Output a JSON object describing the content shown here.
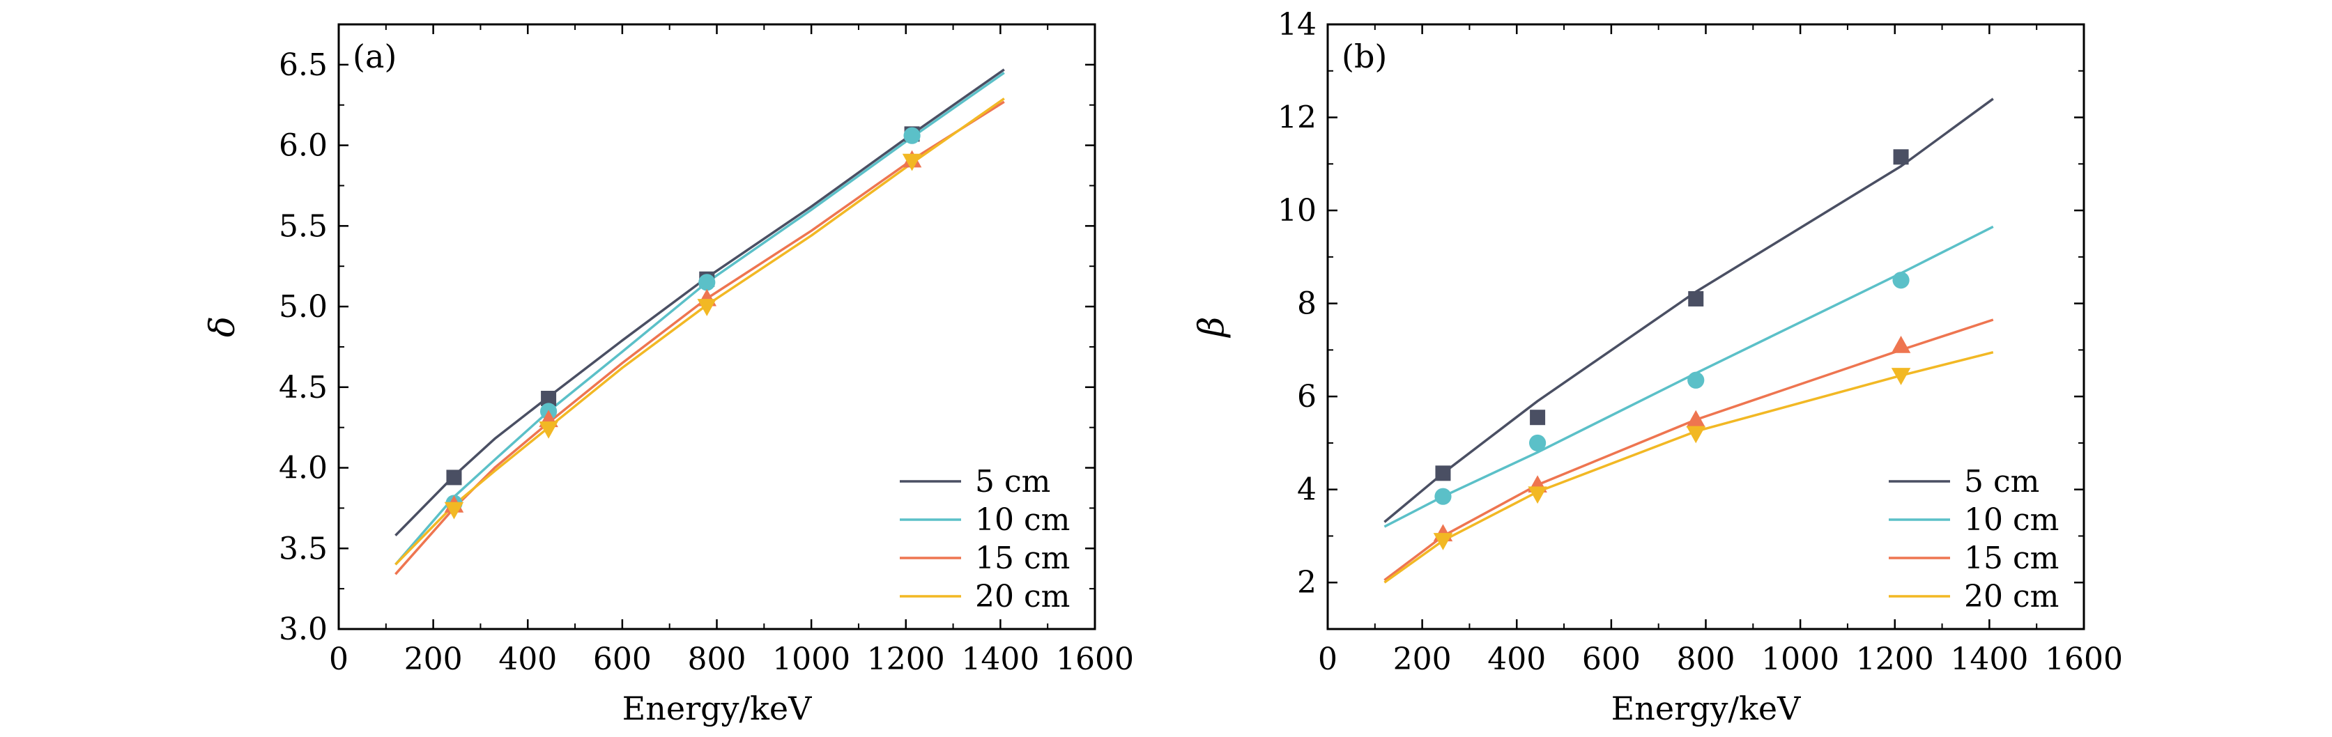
{
  "chart_data": [
    {
      "type": "line",
      "panel_label": "(a)",
      "xlabel": "Energy/keV",
      "ylabel": "δ",
      "xlim": [
        0,
        1600
      ],
      "ylim": [
        3.0,
        6.75
      ],
      "xticks": [
        0,
        200,
        400,
        600,
        800,
        1000,
        1200,
        1400,
        1600
      ],
      "xtick_labels": [
        "0",
        "200",
        "400",
        "600",
        "800",
        "1000",
        "1200",
        "1400",
        "1600"
      ],
      "yticks": [
        3.0,
        3.5,
        4.0,
        4.5,
        5.0,
        5.5,
        6.0,
        6.5
      ],
      "ytick_labels": [
        "3.0",
        "3.5",
        "4.0",
        "4.5",
        "5.0",
        "5.5",
        "6.0",
        "6.5"
      ],
      "legend_position": "bottom-right",
      "series": [
        {
          "name": "5 cm",
          "color": "#4a4f63",
          "marker": "square",
          "line_x": [
            120,
            244,
            330,
            444,
            600,
            779,
            1000,
            1213,
            1408
          ],
          "line_y": [
            3.58,
            3.95,
            4.18,
            4.44,
            4.79,
            5.18,
            5.62,
            6.07,
            6.47
          ],
          "points_x": [
            244,
            444,
            779,
            1213
          ],
          "points_y": [
            3.94,
            4.43,
            5.17,
            6.07
          ]
        },
        {
          "name": "10 cm",
          "color": "#5bc0c8",
          "marker": "circle",
          "line_x": [
            120,
            244,
            330,
            444,
            600,
            779,
            1000,
            1213,
            1408
          ],
          "line_y": [
            3.4,
            3.82,
            4.05,
            4.35,
            4.72,
            5.15,
            5.6,
            6.05,
            6.45
          ],
          "points_x": [
            244,
            444,
            779,
            1213
          ],
          "points_y": [
            3.78,
            4.35,
            5.15,
            6.06
          ]
        },
        {
          "name": "15 cm",
          "color": "#ee7550",
          "marker": "triangle-up",
          "line_x": [
            120,
            244,
            330,
            444,
            600,
            779,
            1000,
            1213,
            1408
          ],
          "line_y": [
            3.34,
            3.75,
            4.0,
            4.28,
            4.65,
            5.05,
            5.47,
            5.91,
            6.27
          ],
          "points_x": [
            244,
            444,
            779,
            1213
          ],
          "points_y": [
            3.77,
            4.3,
            5.05,
            5.91
          ]
        },
        {
          "name": "20 cm",
          "color": "#f2b824",
          "marker": "triangle-down",
          "line_x": [
            120,
            244,
            330,
            444,
            600,
            779,
            1000,
            1213,
            1408
          ],
          "line_y": [
            3.4,
            3.77,
            3.98,
            4.25,
            4.62,
            5.01,
            5.44,
            5.89,
            6.29
          ],
          "points_x": [
            244,
            444,
            779,
            1213
          ],
          "points_y": [
            3.74,
            4.24,
            5.0,
            5.9
          ]
        }
      ]
    },
    {
      "type": "line",
      "panel_label": "(b)",
      "xlabel": "Energy/keV",
      "ylabel": "β",
      "xlim": [
        0,
        1600
      ],
      "ylim": [
        1,
        14
      ],
      "xticks": [
        0,
        200,
        400,
        600,
        800,
        1000,
        1200,
        1400,
        1600
      ],
      "xtick_labels": [
        "0",
        "200",
        "400",
        "600",
        "800",
        "1000",
        "1200",
        "1400",
        "1600"
      ],
      "yticks": [
        2,
        4,
        6,
        8,
        10,
        12,
        14
      ],
      "ytick_labels": [
        "2",
        "4",
        "6",
        "8",
        "10",
        "12",
        "14"
      ],
      "legend_position": "bottom-right",
      "series": [
        {
          "name": "5 cm",
          "color": "#4a4f63",
          "marker": "square",
          "line_x": [
            120,
            244,
            444,
            779,
            1213,
            1408
          ],
          "line_y": [
            3.3,
            4.35,
            5.9,
            8.25,
            10.95,
            12.4
          ],
          "points_x": [
            244,
            444,
            779,
            1213
          ],
          "points_y": [
            4.35,
            5.55,
            8.1,
            11.15
          ]
        },
        {
          "name": "10 cm",
          "color": "#5bc0c8",
          "marker": "circle",
          "line_x": [
            120,
            244,
            444,
            779,
            1213,
            1408
          ],
          "line_y": [
            3.2,
            3.85,
            4.8,
            6.5,
            8.65,
            9.65
          ],
          "points_x": [
            244,
            444,
            779,
            1213
          ],
          "points_y": [
            3.85,
            5.0,
            6.35,
            8.5
          ]
        },
        {
          "name": "15 cm",
          "color": "#ee7550",
          "marker": "triangle-up",
          "line_x": [
            120,
            244,
            444,
            779,
            1213,
            1408
          ],
          "line_y": [
            2.05,
            3.0,
            4.1,
            5.5,
            7.0,
            7.65
          ],
          "points_x": [
            244,
            444,
            779,
            1213
          ],
          "points_y": [
            3.05,
            4.1,
            5.5,
            7.1
          ]
        },
        {
          "name": "20 cm",
          "color": "#f2b824",
          "marker": "triangle-down",
          "line_x": [
            120,
            244,
            444,
            779,
            1213,
            1408
          ],
          "line_y": [
            2.0,
            2.9,
            3.95,
            5.25,
            6.45,
            6.95
          ],
          "points_x": [
            244,
            444,
            779,
            1213
          ],
          "points_y": [
            2.9,
            3.9,
            5.2,
            6.45
          ]
        }
      ]
    }
  ]
}
